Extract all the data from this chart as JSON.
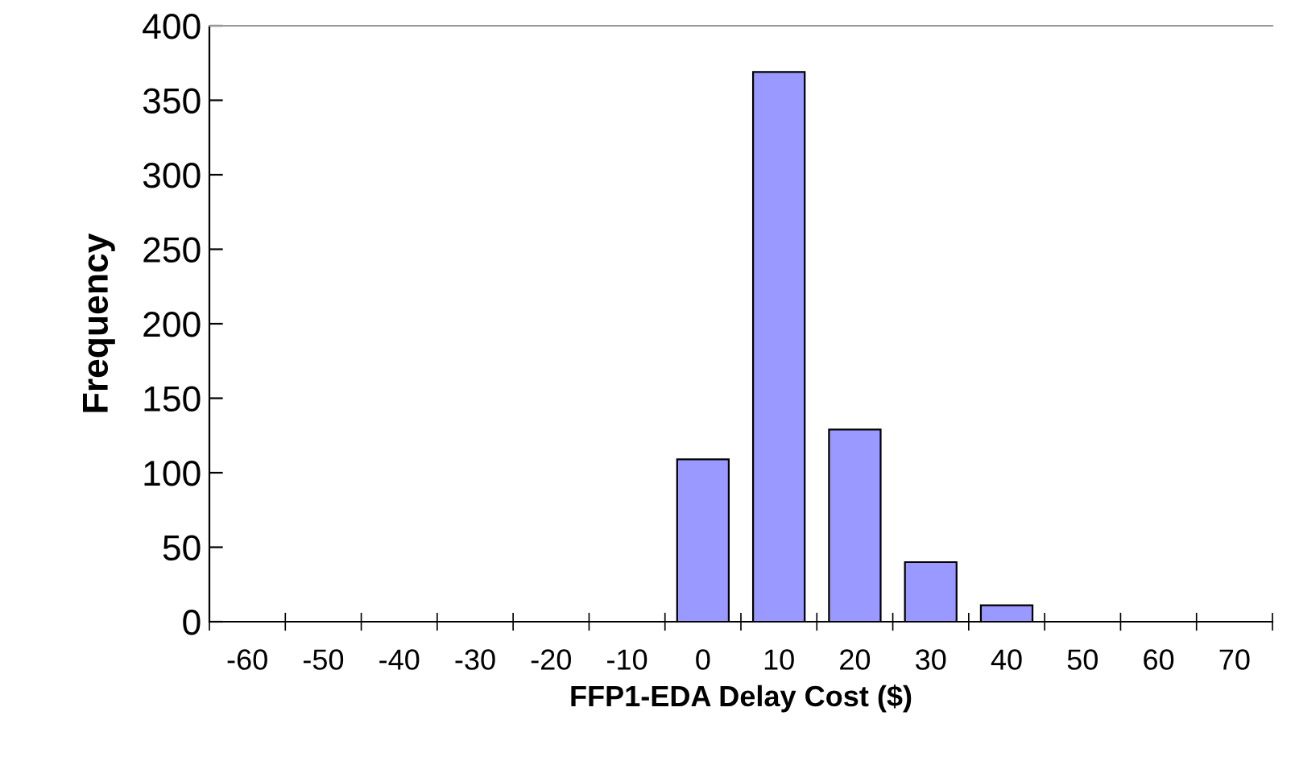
{
  "chart_data": {
    "type": "bar",
    "xlabel": "FFP1-EDA Delay Cost ($)",
    "ylabel": "Frequency",
    "categories": [
      "-60",
      "-50",
      "-40",
      "-30",
      "-20",
      "-10",
      "0",
      "10",
      "20",
      "30",
      "40",
      "50",
      "60",
      "70"
    ],
    "values": [
      0,
      0,
      0,
      0,
      0,
      0,
      109,
      369,
      129,
      40,
      11,
      0,
      0,
      0
    ],
    "color": "#9999ff",
    "ylim": [
      0,
      400
    ],
    "yticks": [
      0,
      50,
      100,
      150,
      200,
      250,
      300,
      350,
      400
    ],
    "grid": false,
    "legend": false
  }
}
